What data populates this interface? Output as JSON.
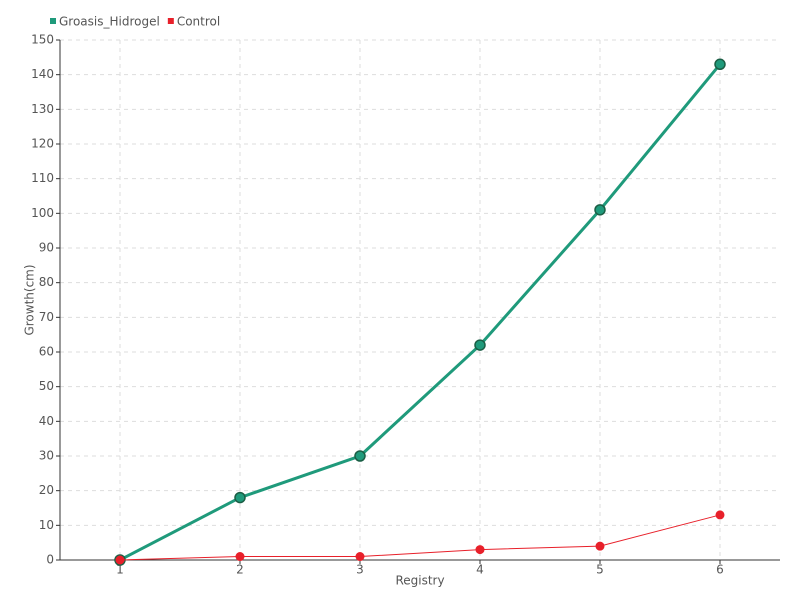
{
  "chart_data": {
    "type": "line",
    "x_label": "Registry",
    "y_label": "Growth(cm)",
    "categories": [
      "1",
      "2",
      "3",
      "4",
      "5",
      "6"
    ],
    "series": [
      {
        "name": "Groasis_Hidrogel",
        "color": "#1f9a7b",
        "values": [
          0,
          18,
          30,
          62,
          101,
          143
        ]
      },
      {
        "name": "Control",
        "color": "#e8202a",
        "values": [
          0,
          1,
          1,
          3,
          4,
          13
        ]
      }
    ],
    "ylim": [
      0,
      150
    ],
    "yticks": [
      0,
      10,
      20,
      30,
      40,
      50,
      60,
      70,
      80,
      90,
      100,
      110,
      120,
      130,
      140,
      150
    ],
    "grid": true,
    "legend": "top-left"
  }
}
